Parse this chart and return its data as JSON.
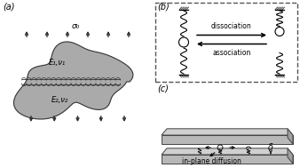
{
  "bg_color": "#ffffff",
  "gray_blob": "#aaaaaa",
  "dark_gray": "#333333",
  "panel_a_label": "(a)",
  "panel_b_label": "(b)",
  "panel_c_label": "(c)",
  "sigma_label": "σ₀",
  "E1_label": "E₁,ν₁",
  "E2_label": "E₂,ν₂",
  "dissociation_label": "dissociation",
  "association_label": "association",
  "diffusion_label": "in-plane diffusion",
  "delta_label": "δ"
}
